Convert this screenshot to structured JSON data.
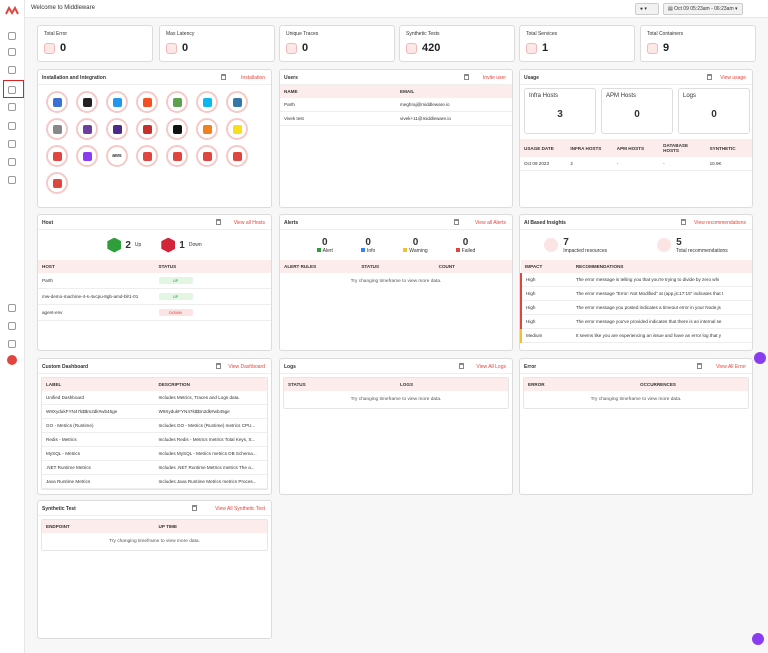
{
  "topbar": {
    "title": "Welcome to Middleware",
    "date_range": "Oct 09 05:23am - 06:23am"
  },
  "stats": [
    {
      "label": "Total Error",
      "value": 0
    },
    {
      "label": "Max Latency",
      "value": 0
    },
    {
      "label": "Unique Traces",
      "value": 0
    },
    {
      "label": "Synthetic Tests",
      "value": 420
    },
    {
      "label": "Total Services",
      "value": 1
    },
    {
      "label": "Total Containers",
      "value": 9
    }
  ],
  "installation": {
    "title": "Installation and Integration",
    "link": "Installation",
    "aws_label": "aws"
  },
  "users": {
    "title": "Users",
    "link": "Invite user",
    "table": {
      "columns": [
        "NAME",
        "EMAIL"
      ],
      "rows": [
        [
          "Parth",
          "meghraj@middleware.io"
        ],
        [
          "Vivek test",
          "vivek+11@middleware.io"
        ]
      ]
    }
  },
  "usage": {
    "title": "Usage",
    "link": "View usage",
    "boxes": [
      {
        "label": "Infra Hosts",
        "value": 3
      },
      {
        "label": "APM Hosts",
        "value": 0
      },
      {
        "label": "Logs",
        "value": 0
      }
    ],
    "table": {
      "columns": [
        "USAGE DATE",
        "INFRA HOSTS",
        "APM HOSTS",
        "DATABASE HOSTS",
        "SYNTHETIC"
      ],
      "rows": [
        [
          "Oct 09 2023",
          "2",
          "-",
          "-",
          "10.9K"
        ]
      ]
    }
  },
  "host": {
    "title": "Host",
    "link": "View all Hosts",
    "summary": [
      {
        "value": 2,
        "label": "Up"
      },
      {
        "value": 1,
        "label": "Down"
      }
    ],
    "table": {
      "columns": [
        "HOST",
        "STATUS"
      ],
      "rows": [
        [
          "Parth",
          "UP"
        ],
        [
          "mw-demo-machine-4-s-4vcpu-8gb-amd-blr1-01",
          "UP"
        ],
        [
          "agent-env",
          "DOWN"
        ]
      ]
    }
  },
  "alerts": {
    "title": "Alerts",
    "link": "View all Alerts",
    "summary": [
      {
        "value": 0,
        "label": "Alert"
      },
      {
        "value": 0,
        "label": "Info"
      },
      {
        "value": 0,
        "label": "Warning"
      },
      {
        "value": 0,
        "label": "Failed"
      }
    ],
    "table": {
      "columns": [
        "ALERT RULES",
        "STATUS",
        "COUNT"
      ],
      "empty_message": "Try changing timeframe to view more data."
    }
  },
  "insights": {
    "title": "AI Based Insights",
    "link": "View recommendations",
    "summary": [
      {
        "value": 7,
        "label": "Impacted resources"
      },
      {
        "value": 5,
        "label": "Total recommendations"
      }
    ],
    "table": {
      "columns": [
        "IMPACT",
        "RECOMMENDATIONS"
      ],
      "rows": [
        [
          "High",
          "The error message is telling you that you're trying to divide by zero whi"
        ],
        [
          "High",
          "The error message \"Error: Not Modified\" at (app.js:17:15\" indicates that t"
        ],
        [
          "High",
          "The error message you posted indicates a timeout error in your Node.js"
        ],
        [
          "High",
          "The error message you've provided indicates that there is an internal se"
        ],
        [
          "Medium",
          "It seems like you are experiencing an issue and have an error log that y"
        ]
      ]
    }
  },
  "custom_dashboard": {
    "title": "Custom Dashboard",
    "link": "View Dashboard",
    "table": {
      "columns": [
        "LABEL",
        "DESCRIPTION"
      ],
      "rows": [
        [
          "Unified Dashboard",
          "Includes Metrics, Traces and Logs data."
        ],
        [
          "W9XydukFYN47k$$m2dk#wb45ge",
          "W9XydukFYN47k$$m2dk#wb45ge"
        ],
        [
          "GO - Metrics (Runtime)",
          "Includes GO - Metrics (Runtime) metrics CPU..."
        ],
        [
          "Redis - Metrics",
          "Includes Redis - Metrics metrics Total Keys, S..."
        ],
        [
          "MySQL - Metrics",
          "Includes MySQL - Metrics metrics DB Schema..."
        ],
        [
          ".NET Runtime Metrics",
          "Includes .NET Runtime Metrics metrics The a..."
        ],
        [
          "Java Runtime Metrics",
          "Includes Java Runtime Metrics metrics Proces..."
        ]
      ]
    }
  },
  "logs": {
    "title": "Logs",
    "link": "View All Logs",
    "table": {
      "columns": [
        "STATUS",
        "LOGS"
      ],
      "empty_message": "Try changing timeframe to view more data."
    }
  },
  "error": {
    "title": "Error",
    "link": "View All Error",
    "table": {
      "columns": [
        "ERROR",
        "OCCURRENCES"
      ],
      "empty_message": "Try changing timeframe to view more data."
    }
  },
  "synthetic": {
    "title": "Synthetic Test",
    "link": "View All Synthetic Test",
    "table": {
      "columns": [
        "ENDPOINT",
        "UP TIME"
      ],
      "empty_message": "Try changing timeframe to view more data."
    }
  }
}
